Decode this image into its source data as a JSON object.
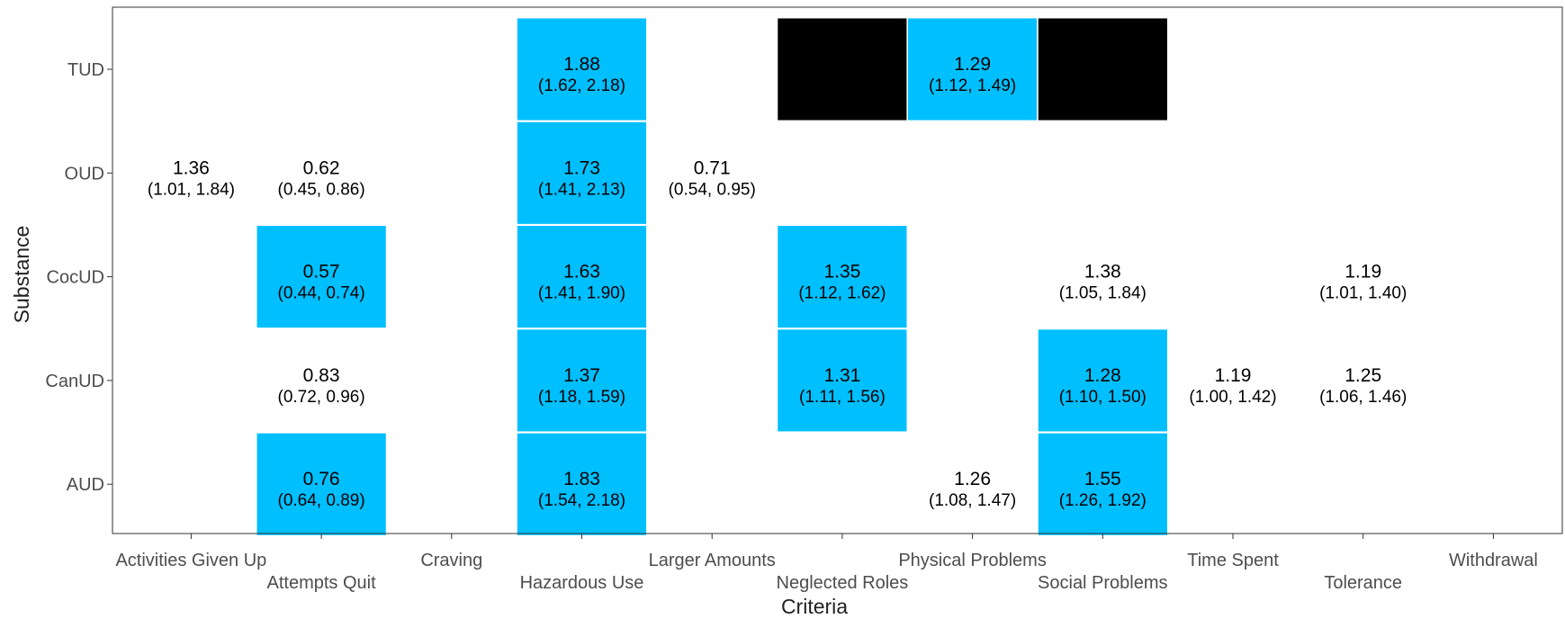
{
  "chart_data": {
    "type": "heatmap",
    "xlabel": "Criteria",
    "ylabel": "Substance",
    "x_categories": [
      "Activities Given Up",
      "Attempts Quit",
      "Craving",
      "Hazardous Use",
      "Larger Amounts",
      "Neglected Roles",
      "Physical Problems",
      "Social Problems",
      "Time Spent",
      "Tolerance",
      "Withdrawal"
    ],
    "y_categories": [
      "AUD",
      "CanUD",
      "CocUD",
      "OUD",
      "TUD"
    ],
    "colors": {
      "significant_fill": "#00BFFF",
      "black_fill": "#000000",
      "border": "#333333"
    },
    "cells": [
      {
        "substance": "TUD",
        "criterion": "Hazardous Use",
        "estimate": "1.88",
        "ci": "(1.62, 2.18)",
        "fill": "blue"
      },
      {
        "substance": "TUD",
        "criterion": "Neglected Roles",
        "estimate": "",
        "ci": "",
        "fill": "black"
      },
      {
        "substance": "TUD",
        "criterion": "Physical Problems",
        "estimate": "1.29",
        "ci": "(1.12, 1.49)",
        "fill": "blue"
      },
      {
        "substance": "TUD",
        "criterion": "Social Problems",
        "estimate": "",
        "ci": "",
        "fill": "black"
      },
      {
        "substance": "OUD",
        "criterion": "Activities Given Up",
        "estimate": "1.36",
        "ci": "(1.01, 1.84)",
        "fill": "none"
      },
      {
        "substance": "OUD",
        "criterion": "Attempts Quit",
        "estimate": "0.62",
        "ci": "(0.45, 0.86)",
        "fill": "none"
      },
      {
        "substance": "OUD",
        "criterion": "Hazardous Use",
        "estimate": "1.73",
        "ci": "(1.41, 2.13)",
        "fill": "blue"
      },
      {
        "substance": "OUD",
        "criterion": "Larger Amounts",
        "estimate": "0.71",
        "ci": "(0.54, 0.95)",
        "fill": "none"
      },
      {
        "substance": "CocUD",
        "criterion": "Attempts Quit",
        "estimate": "0.57",
        "ci": "(0.44, 0.74)",
        "fill": "blue"
      },
      {
        "substance": "CocUD",
        "criterion": "Hazardous Use",
        "estimate": "1.63",
        "ci": "(1.41, 1.90)",
        "fill": "blue"
      },
      {
        "substance": "CocUD",
        "criterion": "Neglected Roles",
        "estimate": "1.35",
        "ci": "(1.12, 1.62)",
        "fill": "blue"
      },
      {
        "substance": "CocUD",
        "criterion": "Social Problems",
        "estimate": "1.38",
        "ci": "(1.05, 1.84)",
        "fill": "none"
      },
      {
        "substance": "CocUD",
        "criterion": "Tolerance",
        "estimate": "1.19",
        "ci": "(1.01, 1.40)",
        "fill": "none"
      },
      {
        "substance": "CanUD",
        "criterion": "Attempts Quit",
        "estimate": "0.83",
        "ci": "(0.72, 0.96)",
        "fill": "none"
      },
      {
        "substance": "CanUD",
        "criterion": "Hazardous Use",
        "estimate": "1.37",
        "ci": "(1.18, 1.59)",
        "fill": "blue"
      },
      {
        "substance": "CanUD",
        "criterion": "Neglected Roles",
        "estimate": "1.31",
        "ci": "(1.11, 1.56)",
        "fill": "blue"
      },
      {
        "substance": "CanUD",
        "criterion": "Social Problems",
        "estimate": "1.28",
        "ci": "(1.10, 1.50)",
        "fill": "blue"
      },
      {
        "substance": "CanUD",
        "criterion": "Time Spent",
        "estimate": "1.19",
        "ci": "(1.00, 1.42)",
        "fill": "none"
      },
      {
        "substance": "CanUD",
        "criterion": "Tolerance",
        "estimate": "1.25",
        "ci": "(1.06, 1.46)",
        "fill": "none"
      },
      {
        "substance": "AUD",
        "criterion": "Attempts Quit",
        "estimate": "0.76",
        "ci": "(0.64, 0.89)",
        "fill": "blue"
      },
      {
        "substance": "AUD",
        "criterion": "Hazardous Use",
        "estimate": "1.83",
        "ci": "(1.54, 2.18)",
        "fill": "blue"
      },
      {
        "substance": "AUD",
        "criterion": "Physical Problems",
        "estimate": "1.26",
        "ci": "(1.08, 1.47)",
        "fill": "none"
      },
      {
        "substance": "AUD",
        "criterion": "Social Problems",
        "estimate": "1.55",
        "ci": "(1.26, 1.92)",
        "fill": "blue"
      }
    ],
    "grid": false,
    "legend": "none"
  }
}
